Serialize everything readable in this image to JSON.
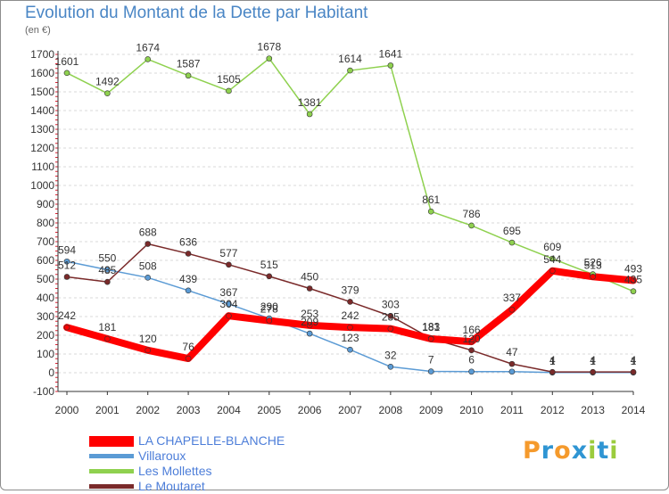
{
  "title": "Evolution du Montant de la Dette par Habitant",
  "subtitle": "(en €)",
  "logo": {
    "text": "Proxiti",
    "colors": [
      "#f59a2c",
      "#2f95d3",
      "#f59a2c",
      "#2f95d3",
      "#9bcc3d",
      "#2f95d3",
      "#9bcc3d"
    ]
  },
  "chart_data": {
    "type": "line",
    "title": "Evolution du Montant de la Dette par Habitant",
    "ylabel": "(en €)",
    "xlabel": "",
    "ylim": [
      -100,
      1700
    ],
    "yticks": [
      -100,
      0,
      100,
      200,
      300,
      400,
      500,
      600,
      700,
      800,
      900,
      1000,
      1100,
      1200,
      1300,
      1400,
      1500,
      1600,
      1700
    ],
    "x": [
      "2000",
      "2001",
      "2002",
      "2003",
      "2004",
      "2005",
      "2006",
      "2007",
      "2008",
      "2009",
      "2010",
      "2011",
      "2012",
      "2013",
      "2014"
    ],
    "grid": "horizontal",
    "legend_position": "bottom-left",
    "series": [
      {
        "name": "Villaroux",
        "color": "#5b9bd5",
        "width": 1.5,
        "values": [
          594,
          550,
          508,
          439,
          367,
          290,
          209,
          123,
          32,
          7,
          6,
          6,
          1,
          1,
          1
        ],
        "labels": [
          "594",
          "550",
          "508",
          "439",
          "367",
          "290",
          "209",
          "123",
          "32",
          "7",
          "6",
          "",
          "1",
          "1",
          "1"
        ]
      },
      {
        "name": "Les Mollettes",
        "color": "#8fd14f",
        "width": 1.5,
        "values": [
          1601,
          1492,
          1674,
          1587,
          1505,
          1678,
          1381,
          1614,
          1641,
          861,
          786,
          695,
          609,
          526,
          435
        ],
        "labels": [
          "1601",
          "1492",
          "1674",
          "1587",
          "1505",
          "1678",
          "1381",
          "1614",
          "1641",
          "861",
          "786",
          "695",
          "609",
          "526",
          "435"
        ]
      },
      {
        "name": "Le Moutaret",
        "color": "#7a2a2a",
        "width": 1.5,
        "values": [
          512,
          485,
          688,
          636,
          577,
          515,
          450,
          379,
          303,
          183,
          120,
          47,
          4,
          4,
          4
        ],
        "labels": [
          "512",
          "485",
          "688",
          "636",
          "577",
          "515",
          "450",
          "379",
          "303",
          "183",
          "120",
          "47",
          "4",
          "4",
          "4"
        ]
      },
      {
        "name": "LA CHAPELLE-BLANCHE",
        "color": "#ff0000",
        "width": 8,
        "values": [
          242,
          181,
          120,
          76,
          304,
          278,
          253,
          242,
          235,
          181,
          166,
          337,
          544,
          513,
          493
        ],
        "labels": [
          "242",
          "181",
          "120",
          "76",
          "304",
          "278",
          "253",
          "242",
          "235",
          "181",
          "166",
          "337",
          "544",
          "513",
          "493"
        ]
      }
    ],
    "legend_order": [
      "LA CHAPELLE-BLANCHE",
      "Villaroux",
      "Les Mollettes",
      "Le Moutaret"
    ]
  }
}
